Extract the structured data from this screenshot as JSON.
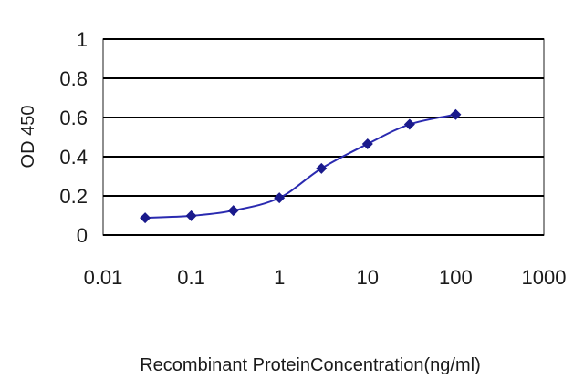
{
  "chart_data": {
    "type": "line",
    "xscale": "log",
    "x": [
      0.03,
      0.1,
      0.3,
      1,
      3,
      10,
      30,
      100
    ],
    "series": [
      {
        "values": [
          0.088,
          0.098,
          0.125,
          0.19,
          0.34,
          0.465,
          0.565,
          0.615
        ]
      }
    ],
    "xlim": [
      0.01,
      1000
    ],
    "ylim": [
      0,
      1
    ],
    "xticks": [
      "0.01",
      "0.1",
      "1",
      "10",
      "100",
      "1000"
    ],
    "yticks": [
      "0",
      "0.2",
      "0.4",
      "0.6",
      "0.8",
      "1"
    ],
    "ylabel": "OD 450",
    "xlabel": "Recombinant ProteinConcentration(ng/ml)",
    "grid": "horizontal",
    "legend": "none",
    "colors": {
      "line": "#2a2ab0",
      "marker": "#1a1a8c",
      "grid": "#000000",
      "plot_bg": "#ffffff"
    }
  }
}
